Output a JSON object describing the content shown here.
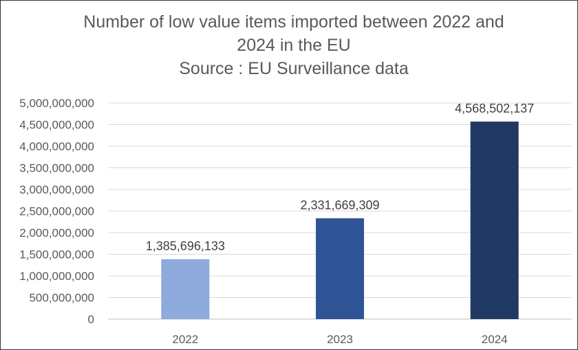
{
  "chart_data": {
    "type": "bar",
    "title": [
      "Number of low value items imported between 2022 and",
      "2024 in the EU",
      "Source : EU Surveillance data"
    ],
    "categories": [
      "2022",
      "2023",
      "2024"
    ],
    "values": [
      1385696133,
      2331669309,
      4568502137
    ],
    "data_labels": [
      "1,385,696,133",
      "2,331,669,309",
      "4,568,502,137"
    ],
    "bar_colors": [
      "#8faadc",
      "#2f5597",
      "#1f3864"
    ],
    "ylim": [
      0,
      5000000000
    ],
    "y_ticks": [
      0,
      500000000,
      1000000000,
      1500000000,
      2000000000,
      2500000000,
      3000000000,
      3500000000,
      4000000000,
      4500000000,
      5000000000
    ],
    "y_tick_labels": [
      "0",
      "500,000,000",
      "1,000,000,000",
      "1,500,000,000",
      "2,000,000,000",
      "2,500,000,000",
      "3,000,000,000",
      "3,500,000,000",
      "4,000,000,000",
      "4,500,000,000",
      "5,000,000,000"
    ],
    "xlabel": "",
    "ylabel": "",
    "grid": true,
    "legend": "none"
  }
}
